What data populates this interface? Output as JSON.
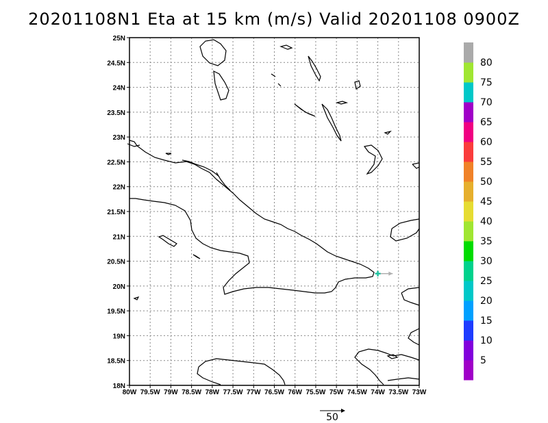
{
  "title": "20201108N1 Eta at 15 km (m/s) Valid 20201108  0900Z",
  "map": {
    "lon_range": [
      -80,
      -73
    ],
    "lat_range": [
      18,
      25
    ],
    "lon_step": 0.5,
    "lat_step": 0.5,
    "grid": "dotted",
    "lon_ticks": [
      "80W",
      "79.5W",
      "79W",
      "78.5W",
      "78W",
      "77.5W",
      "77W",
      "76.5W",
      "76W",
      "75.5W",
      "75W",
      "74.5W",
      "74W",
      "73.5W",
      "73W"
    ],
    "lat_ticks": [
      "18N",
      "18.5N",
      "19N",
      "19.5N",
      "20N",
      "20.5N",
      "21N",
      "21.5N",
      "22N",
      "22.5N",
      "23N",
      "23.5N",
      "24N",
      "24.5N",
      "25N"
    ]
  },
  "storm": {
    "lon": -74.0,
    "lat": 20.25,
    "marker_color": "#22c2a0",
    "vector_color": "#b0b0b0",
    "vector_speed": 17
  },
  "colorbar": {
    "labels": [
      "5",
      "10",
      "15",
      "20",
      "25",
      "30",
      "35",
      "40",
      "45",
      "50",
      "55",
      "60",
      "65",
      "70",
      "75",
      "80"
    ],
    "colors": [
      "#a000c8",
      "#8200dc",
      "#1e3cff",
      "#00a0ff",
      "#00c8c8",
      "#00d28c",
      "#00dc00",
      "#a0e632",
      "#e6dc32",
      "#e6af2d",
      "#f08228",
      "#fa3c3c",
      "#f00082",
      "#a000c8",
      "#00c8c8",
      "#a0e632",
      "#aaaaaa"
    ]
  },
  "reference_vector": {
    "label": "50"
  }
}
